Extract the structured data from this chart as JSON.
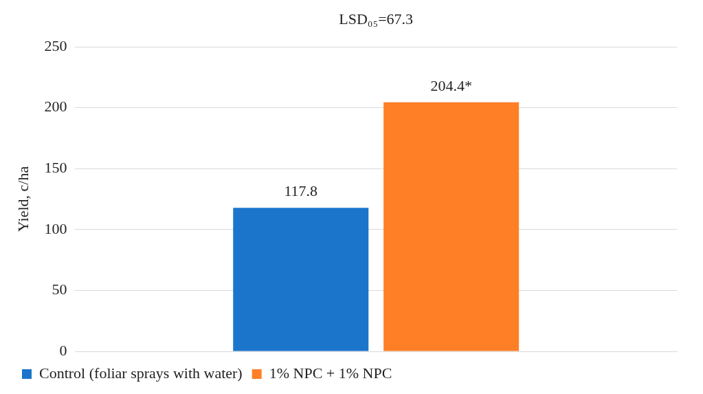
{
  "chart_data": {
    "type": "bar",
    "ylabel": "Yield, c/ha",
    "annotations": [
      "LSD₀₅=67.3"
    ],
    "categories": [
      null
    ],
    "series": [
      {
        "name": "Control (foliar sprays with water)",
        "color": "#1b75cb",
        "values": [
          117.8
        ],
        "value_labels": [
          "117.8"
        ]
      },
      {
        "name": "1% NPC + 1% NPC",
        "color": "#ff7f27",
        "values": [
          204.4
        ],
        "value_labels": [
          "204.4*"
        ]
      }
    ],
    "ylim": [
      0,
      250
    ],
    "yticks": [
      0,
      50,
      100,
      150,
      200,
      250
    ],
    "grid": "y",
    "legend": "bottom"
  }
}
